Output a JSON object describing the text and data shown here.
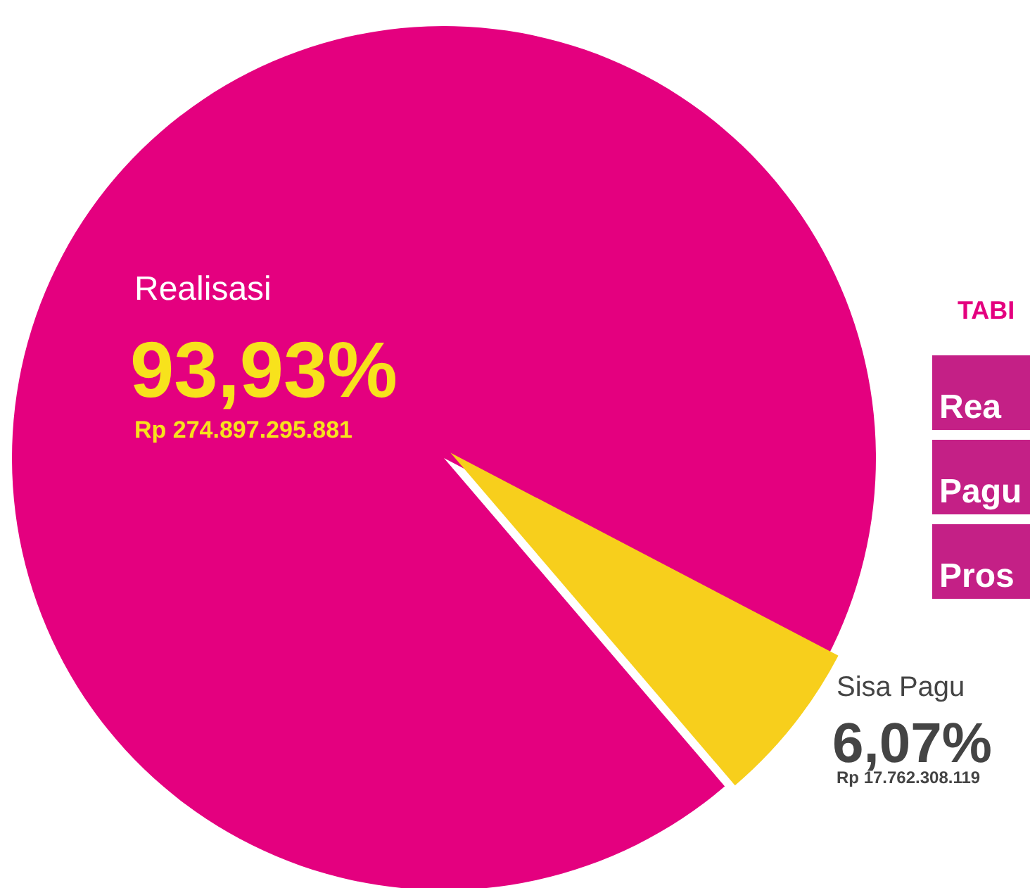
{
  "chart_data": {
    "type": "pie",
    "categories": [
      "Realisasi",
      "Sisa Pagu"
    ],
    "values": [
      93.93,
      6.07
    ],
    "colors": [
      "#e4007f",
      "#f7cf1c"
    ],
    "value_labels": [
      "93,93%",
      "6,07%"
    ],
    "annotations": [
      "Rp 274.897.295.881",
      "Rp 17.762.308.119",
      "TABI",
      "Rea",
      "Pagu",
      "Pros"
    ]
  }
}
